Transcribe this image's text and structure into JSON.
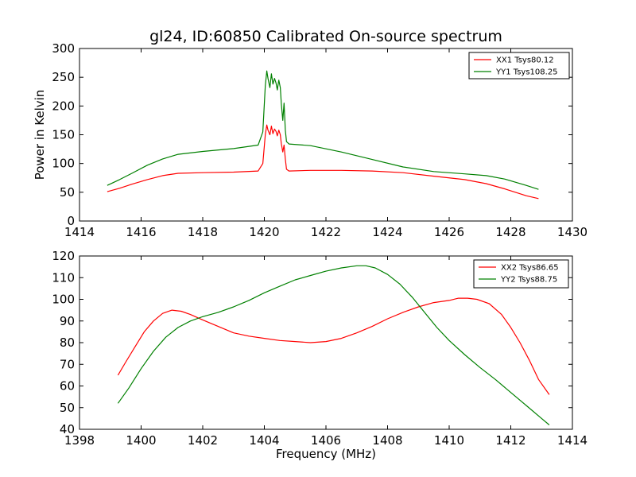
{
  "title": "gl24, ID:60850 Calibrated On-source spectrum",
  "chart_data": [
    {
      "type": "line",
      "title": "gl24, ID:60850 Calibrated On-source spectrum",
      "xlabel": "",
      "ylabel": "Power in Kelvin",
      "xlim": [
        1414,
        1430
      ],
      "ylim": [
        0,
        300
      ],
      "xticks": [
        "1414",
        "1416",
        "1418",
        "1420",
        "1422",
        "1424",
        "1426",
        "1428",
        "1430"
      ],
      "yticks": [
        "0",
        "50",
        "100",
        "150",
        "200",
        "250",
        "300"
      ],
      "legend_position": "top-right",
      "grid": false,
      "series": [
        {
          "name": "XX1 Tsys80.12",
          "color": "#ff0000",
          "x": [
            1414.9,
            1415.3,
            1415.7,
            1416.2,
            1416.7,
            1417.2,
            1418.0,
            1419.0,
            1419.8,
            1419.95,
            1420.03,
            1420.08,
            1420.12,
            1420.18,
            1420.23,
            1420.28,
            1420.33,
            1420.38,
            1420.42,
            1420.47,
            1420.52,
            1420.55,
            1420.6,
            1420.64,
            1420.68,
            1420.72,
            1420.8,
            1421.5,
            1422.5,
            1423.5,
            1424.5,
            1425.5,
            1426.5,
            1427.2,
            1427.8,
            1428.5,
            1428.9
          ],
          "y": [
            51,
            57,
            64,
            72,
            79,
            83,
            84,
            85,
            87,
            100,
            150,
            167,
            158,
            150,
            165,
            152,
            160,
            156,
            148,
            158,
            150,
            135,
            120,
            132,
            108,
            90,
            87,
            88,
            88,
            87,
            84,
            78,
            72,
            65,
            56,
            44,
            39
          ]
        },
        {
          "name": "YY1 Tsys108.25",
          "color": "#008000",
          "x": [
            1414.9,
            1415.3,
            1415.7,
            1416.2,
            1416.7,
            1417.2,
            1418.0,
            1419.0,
            1419.8,
            1419.95,
            1420.03,
            1420.08,
            1420.12,
            1420.18,
            1420.23,
            1420.28,
            1420.33,
            1420.38,
            1420.42,
            1420.47,
            1420.52,
            1420.55,
            1420.6,
            1420.64,
            1420.68,
            1420.72,
            1420.8,
            1421.5,
            1422.5,
            1423.5,
            1424.5,
            1425.5,
            1426.5,
            1427.2,
            1427.8,
            1428.5,
            1428.9
          ],
          "y": [
            62,
            72,
            83,
            97,
            108,
            116,
            121,
            126,
            132,
            155,
            235,
            261,
            248,
            232,
            256,
            238,
            248,
            240,
            228,
            245,
            232,
            205,
            175,
            205,
            158,
            138,
            134,
            131,
            120,
            107,
            94,
            86,
            82,
            79,
            73,
            62,
            55
          ]
        }
      ]
    },
    {
      "type": "line",
      "title": "",
      "xlabel": "Frequency (MHz)",
      "ylabel": "",
      "xlim": [
        1398,
        1414
      ],
      "ylim": [
        40,
        120
      ],
      "xticks": [
        "1398",
        "1400",
        "1402",
        "1404",
        "1406",
        "1408",
        "1410",
        "1412",
        "1414"
      ],
      "yticks": [
        "40",
        "50",
        "60",
        "70",
        "80",
        "90",
        "100",
        "110",
        "120"
      ],
      "legend_position": "top-right",
      "grid": false,
      "series": [
        {
          "name": "XX2 Tsys86.65",
          "color": "#ff0000",
          "x": [
            1399.25,
            1399.5,
            1399.8,
            1400.1,
            1400.4,
            1400.7,
            1401.0,
            1401.3,
            1401.6,
            1402.0,
            1402.5,
            1403.0,
            1403.5,
            1404.0,
            1404.5,
            1405.0,
            1405.5,
            1406.0,
            1406.5,
            1407.0,
            1407.5,
            1408.0,
            1408.5,
            1409.0,
            1409.5,
            1410.0,
            1410.3,
            1410.6,
            1410.9,
            1411.3,
            1411.7,
            1412.0,
            1412.3,
            1412.6,
            1412.9,
            1413.25
          ],
          "y": [
            65,
            71,
            78,
            85,
            90,
            93.5,
            95,
            94.5,
            93,
            90.5,
            87.5,
            84.5,
            83,
            82,
            81,
            80.5,
            80,
            80.5,
            82,
            84.5,
            87.5,
            91,
            94,
            96.5,
            98.5,
            99.5,
            100.5,
            100.5,
            100,
            98,
            93,
            87,
            80,
            72,
            63,
            56
          ]
        },
        {
          "name": "YY2 Tsys88.75",
          "color": "#008000",
          "x": [
            1399.25,
            1399.6,
            1400.0,
            1400.4,
            1400.8,
            1401.2,
            1401.6,
            1402.0,
            1402.5,
            1403.0,
            1403.5,
            1404.0,
            1404.5,
            1405.0,
            1405.5,
            1406.0,
            1406.5,
            1407.0,
            1407.3,
            1407.6,
            1408.0,
            1408.4,
            1408.8,
            1409.2,
            1409.6,
            1410.0,
            1410.5,
            1411.0,
            1411.5,
            1412.0,
            1412.5,
            1413.0,
            1413.25
          ],
          "y": [
            52,
            59,
            68,
            76,
            82.5,
            87,
            90,
            92,
            94,
            96.5,
            99.5,
            103,
            106,
            109,
            111,
            113,
            114.5,
            115.5,
            115.5,
            114.5,
            111.5,
            107,
            101,
            94,
            87,
            81,
            74.5,
            68.5,
            63,
            57,
            51,
            45,
            42
          ]
        }
      ]
    }
  ]
}
